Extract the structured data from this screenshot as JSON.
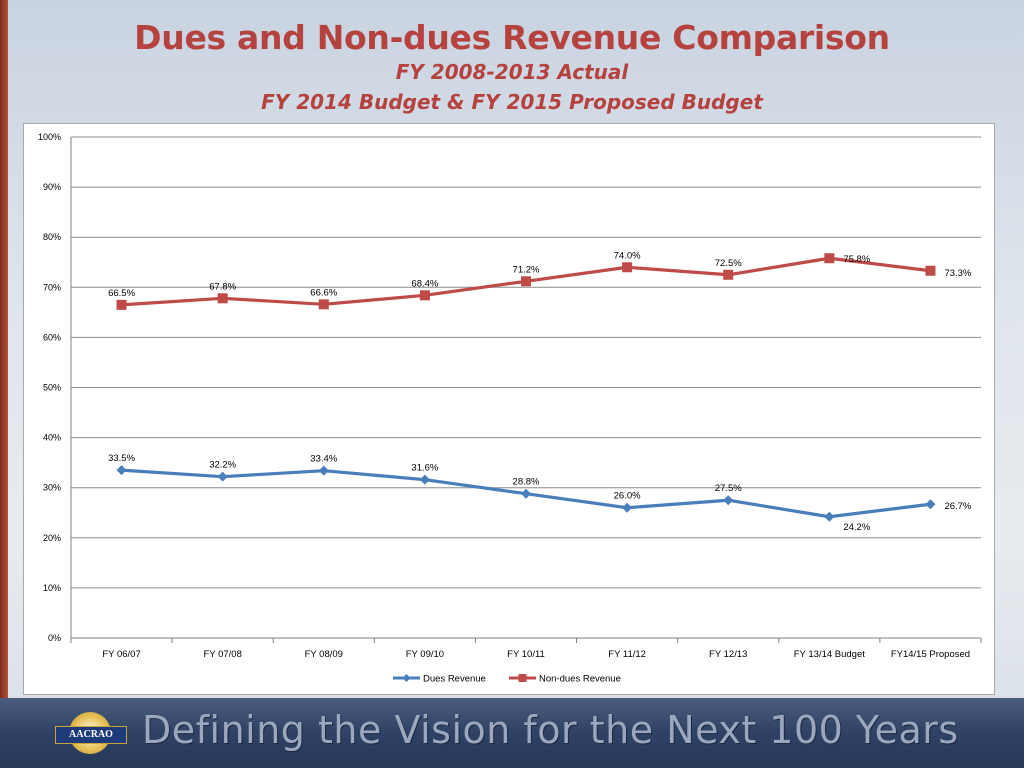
{
  "header": {
    "title": "Dues and Non-dues Revenue Comparison",
    "subtitle1": "FY 2008-2013 Actual",
    "subtitle2": "FY 2014 Budget & FY 2015 Proposed Budget"
  },
  "footer": {
    "logo_text": "AACRAO",
    "tagline": "Defining the Vision for the Next 100 Years"
  },
  "colors": {
    "dues": "#4a7ebb",
    "non_dues": "#be4b48",
    "title": "#b5423f"
  },
  "chart_data": {
    "type": "line",
    "title": "",
    "xlabel": "",
    "ylabel": "",
    "ylim": [
      0,
      100
    ],
    "yticks": [
      "0%",
      "10%",
      "20%",
      "30%",
      "40%",
      "50%",
      "60%",
      "70%",
      "80%",
      "90%",
      "100%"
    ],
    "grid": true,
    "legend_placement": "bottom",
    "categories": [
      "FY 06/07",
      "FY 07/08",
      "FY 08/09",
      "FY 09/10",
      "FY 10/11",
      "FY 11/12",
      "FY 12/13",
      "FY 13/14 Budget",
      "FY14/15 Proposed"
    ],
    "series": [
      {
        "name": "Dues Revenue",
        "marker": "diamond",
        "color": "#4a7ebb",
        "values": [
          33.5,
          32.2,
          33.4,
          31.6,
          28.8,
          26.0,
          27.5,
          24.2,
          26.7
        ],
        "labels": [
          "33.5%",
          "32.2%",
          "33.4%",
          "31.6%",
          "28.8%",
          "26.0%",
          "27.5%",
          "24.2%",
          "26.7%"
        ]
      },
      {
        "name": "Non-dues Revenue",
        "marker": "square",
        "color": "#be4b48",
        "values": [
          66.5,
          67.8,
          66.6,
          68.4,
          71.2,
          74.0,
          72.5,
          75.8,
          73.3
        ],
        "labels": [
          "66.5%",
          "67.8%",
          "66.6%",
          "68.4%",
          "71.2%",
          "74.0%",
          "72.5%",
          "75.8%",
          "73.3%"
        ]
      }
    ]
  }
}
